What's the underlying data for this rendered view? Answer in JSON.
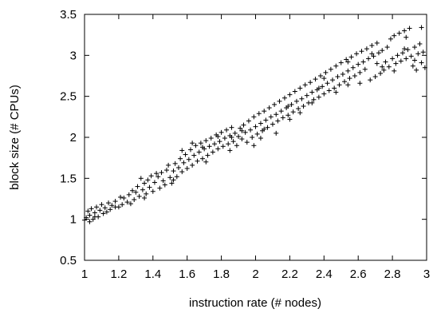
{
  "chart_data": {
    "type": "scatter",
    "title": "",
    "xlabel": "instruction rate (# nodes)",
    "ylabel": "block size (# CPUs)",
    "xlim": [
      1,
      3
    ],
    "ylim": [
      0.5,
      3.5
    ],
    "xticks": [
      "1",
      "1.2",
      "1.4",
      "1.6",
      "1.8",
      "2",
      "2.2",
      "2.4",
      "2.6",
      "2.8",
      "3"
    ],
    "yticks": [
      "0.5",
      "1",
      "1.5",
      "2",
      "2.5",
      "3",
      "3.5"
    ],
    "grid": false,
    "marker": "+",
    "series": [
      {
        "points": [
          [
            1.0,
            0.99
          ],
          [
            1.01,
            1.02
          ],
          [
            1.02,
            1.1
          ],
          [
            1.03,
            0.97
          ],
          [
            1.03,
            1.05
          ],
          [
            1.04,
            1.13
          ],
          [
            1.05,
            1.0
          ],
          [
            1.06,
            1.08
          ],
          [
            1.07,
            1.15
          ],
          [
            1.08,
            1.03
          ],
          [
            1.09,
            1.11
          ],
          [
            1.1,
            1.18
          ],
          [
            1.11,
            1.07
          ],
          [
            1.12,
            1.14
          ],
          [
            1.14,
            1.2
          ],
          [
            1.15,
            1.12
          ],
          [
            1.16,
            1.17
          ],
          [
            1.18,
            1.22
          ],
          [
            1.2,
            1.15
          ],
          [
            1.22,
            1.18
          ],
          [
            1.23,
            1.26
          ],
          [
            1.25,
            1.21
          ],
          [
            1.26,
            1.3
          ],
          [
            1.28,
            1.35
          ],
          [
            1.29,
            1.24
          ],
          [
            1.3,
            1.33
          ],
          [
            1.31,
            1.4
          ],
          [
            1.32,
            1.28
          ],
          [
            1.34,
            1.36
          ],
          [
            1.35,
            1.44
          ],
          [
            1.36,
            1.31
          ],
          [
            1.37,
            1.48
          ],
          [
            1.38,
            1.39
          ],
          [
            1.39,
            1.53
          ],
          [
            1.4,
            1.34
          ],
          [
            1.41,
            1.45
          ],
          [
            1.43,
            1.52
          ],
          [
            1.44,
            1.38
          ],
          [
            1.45,
            1.57
          ],
          [
            1.46,
            1.47
          ],
          [
            1.47,
            1.42
          ],
          [
            1.48,
            1.6
          ],
          [
            1.5,
            1.51
          ],
          [
            1.51,
            1.44
          ],
          [
            1.52,
            1.59
          ],
          [
            1.53,
            1.68
          ],
          [
            1.54,
            1.52
          ],
          [
            1.55,
            1.63
          ],
          [
            1.56,
            1.74
          ],
          [
            1.57,
            1.58
          ],
          [
            1.58,
            1.69
          ],
          [
            1.59,
            1.79
          ],
          [
            1.6,
            1.62
          ],
          [
            1.61,
            1.73
          ],
          [
            1.62,
            1.85
          ],
          [
            1.63,
            1.66
          ],
          [
            1.64,
            1.78
          ],
          [
            1.65,
            1.9
          ],
          [
            1.66,
            1.71
          ],
          [
            1.67,
            1.82
          ],
          [
            1.68,
            1.93
          ],
          [
            1.69,
            1.74
          ],
          [
            1.7,
            1.86
          ],
          [
            1.71,
            1.96
          ],
          [
            1.72,
            1.78
          ],
          [
            1.73,
            1.89
          ],
          [
            1.74,
            1.99
          ],
          [
            1.75,
            1.82
          ],
          [
            1.76,
            1.92
          ],
          [
            1.77,
            2.03
          ],
          [
            1.78,
            1.86
          ],
          [
            1.79,
            1.95
          ],
          [
            1.8,
            2.06
          ],
          [
            1.81,
            1.89
          ],
          [
            1.82,
            1.99
          ],
          [
            1.83,
            2.09
          ],
          [
            1.84,
            1.92
          ],
          [
            1.85,
            2.02
          ],
          [
            1.86,
            2.12
          ],
          [
            1.87,
            1.95
          ],
          [
            1.88,
            2.05
          ],
          [
            1.89,
            1.9
          ],
          [
            1.9,
            2.01
          ],
          [
            1.91,
            2.11
          ],
          [
            1.92,
            1.98
          ],
          [
            1.93,
            2.15
          ],
          [
            1.94,
            2.06
          ],
          [
            1.95,
            1.94
          ],
          [
            1.96,
            2.2
          ],
          [
            1.97,
            2.09
          ],
          [
            1.98,
            2.0
          ],
          [
            1.99,
            2.25
          ],
          [
            2.0,
            2.13
          ],
          [
            2.01,
            2.04
          ],
          [
            2.02,
            2.29
          ],
          [
            2.03,
            2.17
          ],
          [
            2.04,
            2.08
          ],
          [
            2.05,
            2.32
          ],
          [
            2.06,
            2.21
          ],
          [
            2.07,
            2.12
          ],
          [
            2.08,
            2.36
          ],
          [
            2.09,
            2.25
          ],
          [
            2.1,
            2.16
          ],
          [
            2.11,
            2.4
          ],
          [
            2.12,
            2.28
          ],
          [
            2.13,
            2.2
          ],
          [
            2.14,
            2.44
          ],
          [
            2.15,
            2.32
          ],
          [
            2.16,
            2.24
          ],
          [
            2.17,
            2.48
          ],
          [
            2.18,
            2.36
          ],
          [
            2.19,
            2.27
          ],
          [
            2.2,
            2.52
          ],
          [
            2.21,
            2.4
          ],
          [
            2.22,
            2.31
          ],
          [
            2.23,
            2.56
          ],
          [
            2.24,
            2.44
          ],
          [
            2.25,
            2.35
          ],
          [
            2.26,
            2.6
          ],
          [
            2.27,
            2.47
          ],
          [
            2.28,
            2.38
          ],
          [
            2.29,
            2.64
          ],
          [
            2.3,
            2.51
          ],
          [
            2.31,
            2.42
          ],
          [
            2.32,
            2.67
          ],
          [
            2.33,
            2.55
          ],
          [
            2.34,
            2.46
          ],
          [
            2.35,
            2.71
          ],
          [
            2.36,
            2.58
          ],
          [
            2.37,
            2.49
          ],
          [
            2.38,
            2.75
          ],
          [
            2.39,
            2.62
          ],
          [
            2.4,
            2.53
          ],
          [
            2.41,
            2.79
          ],
          [
            2.42,
            2.66
          ],
          [
            2.43,
            2.57
          ],
          [
            2.44,
            2.83
          ],
          [
            2.45,
            2.7
          ],
          [
            2.46,
            2.6
          ],
          [
            2.47,
            2.87
          ],
          [
            2.48,
            2.74
          ],
          [
            2.49,
            2.64
          ],
          [
            2.5,
            2.91
          ],
          [
            2.51,
            2.77
          ],
          [
            2.52,
            2.68
          ],
          [
            2.53,
            2.95
          ],
          [
            2.54,
            2.81
          ],
          [
            2.55,
            2.72
          ],
          [
            2.56,
            2.98
          ],
          [
            2.57,
            2.85
          ],
          [
            2.58,
            2.75
          ],
          [
            2.59,
            3.02
          ],
          [
            2.6,
            2.89
          ],
          [
            2.61,
            2.79
          ],
          [
            2.62,
            3.05
          ],
          [
            2.63,
            2.92
          ],
          [
            2.64,
            2.83
          ],
          [
            2.65,
            3.08
          ],
          [
            2.66,
            2.96
          ],
          [
            2.67,
            2.7
          ],
          [
            2.68,
            3.12
          ],
          [
            2.69,
            2.99
          ],
          [
            2.7,
            2.74
          ],
          [
            2.71,
            3.15
          ],
          [
            2.72,
            3.03
          ],
          [
            2.73,
            2.78
          ],
          [
            2.74,
            3.06
          ],
          [
            2.75,
            2.82
          ],
          [
            2.76,
            2.92
          ],
          [
            2.77,
            3.1
          ],
          [
            2.78,
            2.86
          ],
          [
            2.79,
            3.2
          ],
          [
            2.8,
            2.96
          ],
          [
            2.81,
            3.24
          ],
          [
            2.82,
            2.9
          ],
          [
            2.83,
            3.0
          ],
          [
            2.84,
            3.27
          ],
          [
            2.85,
            2.93
          ],
          [
            2.86,
            3.03
          ],
          [
            2.87,
            3.3
          ],
          [
            2.88,
            2.96
          ],
          [
            2.89,
            3.07
          ],
          [
            2.9,
            3.33
          ],
          [
            2.91,
            2.99
          ],
          [
            2.92,
            2.87
          ],
          [
            2.93,
            3.1
          ],
          [
            2.94,
            2.82
          ],
          [
            2.95,
            3.02
          ],
          [
            2.96,
            3.14
          ],
          [
            2.97,
            2.91
          ],
          [
            2.98,
            3.04
          ],
          [
            2.99,
            2.85
          ],
          [
            1.06,
            1.03
          ],
          [
            1.13,
            1.09
          ],
          [
            1.21,
            1.27
          ],
          [
            1.27,
            1.19
          ],
          [
            1.33,
            1.5
          ],
          [
            1.42,
            1.56
          ],
          [
            1.49,
            1.66
          ],
          [
            1.57,
            1.84
          ],
          [
            1.63,
            1.93
          ],
          [
            1.71,
            1.7
          ],
          [
            1.78,
            2.01
          ],
          [
            1.85,
            1.84
          ],
          [
            1.92,
            2.08
          ],
          [
            1.99,
            1.9
          ],
          [
            2.05,
            2.1
          ],
          [
            2.12,
            2.05
          ],
          [
            2.19,
            2.38
          ],
          [
            2.26,
            2.3
          ],
          [
            2.33,
            2.42
          ],
          [
            2.4,
            2.72
          ],
          [
            2.47,
            2.55
          ],
          [
            2.54,
            2.92
          ],
          [
            2.61,
            2.66
          ],
          [
            2.68,
            3.02
          ],
          [
            2.74,
            2.86
          ],
          [
            2.81,
            2.81
          ],
          [
            2.87,
            3.08
          ],
          [
            2.93,
            2.94
          ],
          [
            1.18,
            1.15
          ],
          [
            1.35,
            1.26
          ],
          [
            1.52,
            1.48
          ],
          [
            1.69,
            1.88
          ],
          [
            1.86,
            2.0
          ],
          [
            2.03,
            1.99
          ],
          [
            2.2,
            2.22
          ],
          [
            2.37,
            2.6
          ],
          [
            2.54,
            2.64
          ],
          [
            2.71,
            2.9
          ],
          [
            2.88,
            3.22
          ],
          [
            2.97,
            3.34
          ]
        ]
      }
    ]
  }
}
